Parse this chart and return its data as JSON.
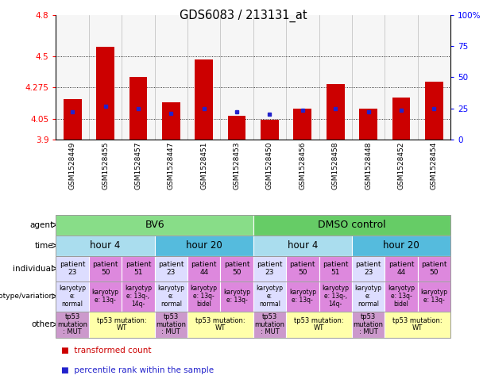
{
  "title": "GDS6083 / 213131_at",
  "samples": [
    "GSM1528449",
    "GSM1528455",
    "GSM1528457",
    "GSM1528447",
    "GSM1528451",
    "GSM1528453",
    "GSM1528450",
    "GSM1528456",
    "GSM1528458",
    "GSM1528448",
    "GSM1528452",
    "GSM1528454"
  ],
  "bar_values": [
    4.19,
    4.57,
    4.35,
    4.17,
    4.48,
    4.07,
    4.04,
    4.12,
    4.3,
    4.12,
    4.2,
    4.32
  ],
  "blue_values": [
    4.1,
    4.14,
    4.12,
    4.09,
    4.12,
    4.1,
    4.08,
    4.11,
    4.12,
    4.1,
    4.11,
    4.12
  ],
  "ymin": 3.9,
  "ymax": 4.8,
  "yticks": [
    3.9,
    4.05,
    4.275,
    4.5,
    4.8
  ],
  "ytick_labels": [
    "3.9",
    "4.05",
    "4.275",
    "4.5",
    "4.8"
  ],
  "right_yticks": [
    0,
    25,
    50,
    75,
    100
  ],
  "right_ytick_labels": [
    "0",
    "25",
    "50",
    "75",
    "100%"
  ],
  "bar_color": "#cc0000",
  "blue_color": "#2222cc",
  "agent_rows": [
    {
      "label": "BV6",
      "span": [
        0,
        6
      ],
      "color": "#88dd88"
    },
    {
      "label": "DMSO control",
      "span": [
        6,
        12
      ],
      "color": "#66cc66"
    }
  ],
  "time_rows": [
    {
      "label": "hour 4",
      "span": [
        0,
        3
      ],
      "color": "#aaddee"
    },
    {
      "label": "hour 20",
      "span": [
        3,
        6
      ],
      "color": "#55bbdd"
    },
    {
      "label": "hour 4",
      "span": [
        6,
        9
      ],
      "color": "#aaddee"
    },
    {
      "label": "hour 20",
      "span": [
        9,
        12
      ],
      "color": "#55bbdd"
    }
  ],
  "individual_items": [
    {
      "label": "patient\n23",
      "span": [
        0,
        1
      ],
      "color": "#ddddff"
    },
    {
      "label": "patient\n50",
      "span": [
        1,
        2
      ],
      "color": "#dd88dd"
    },
    {
      "label": "patient\n51",
      "span": [
        2,
        3
      ],
      "color": "#dd88dd"
    },
    {
      "label": "patient\n23",
      "span": [
        3,
        4
      ],
      "color": "#ddddff"
    },
    {
      "label": "patient\n44",
      "span": [
        4,
        5
      ],
      "color": "#dd88dd"
    },
    {
      "label": "patient\n50",
      "span": [
        5,
        6
      ],
      "color": "#dd88dd"
    },
    {
      "label": "patient\n23",
      "span": [
        6,
        7
      ],
      "color": "#ddddff"
    },
    {
      "label": "patient\n50",
      "span": [
        7,
        8
      ],
      "color": "#dd88dd"
    },
    {
      "label": "patient\n51",
      "span": [
        8,
        9
      ],
      "color": "#dd88dd"
    },
    {
      "label": "patient\n23",
      "span": [
        9,
        10
      ],
      "color": "#ddddff"
    },
    {
      "label": "patient\n44",
      "span": [
        10,
        11
      ],
      "color": "#dd88dd"
    },
    {
      "label": "patient\n50",
      "span": [
        11,
        12
      ],
      "color": "#dd88dd"
    }
  ],
  "genotype_items": [
    {
      "label": "karyotyp\ne:\nnormal",
      "span": [
        0,
        1
      ],
      "color": "#ddddff"
    },
    {
      "label": "karyotyp\ne: 13q-",
      "span": [
        1,
        2
      ],
      "color": "#dd88dd"
    },
    {
      "label": "karyotyp\ne: 13q-,\n14q-",
      "span": [
        2,
        3
      ],
      "color": "#dd88dd"
    },
    {
      "label": "karyotyp\ne:\nnormal",
      "span": [
        3,
        4
      ],
      "color": "#ddddff"
    },
    {
      "label": "karyotyp\ne: 13q-\nbidel",
      "span": [
        4,
        5
      ],
      "color": "#dd88dd"
    },
    {
      "label": "karyotyp\ne: 13q-",
      "span": [
        5,
        6
      ],
      "color": "#dd88dd"
    },
    {
      "label": "karyotyp\ne:\nnormal",
      "span": [
        6,
        7
      ],
      "color": "#ddddff"
    },
    {
      "label": "karyotyp\ne: 13q-",
      "span": [
        7,
        8
      ],
      "color": "#dd88dd"
    },
    {
      "label": "karyotyp\ne: 13q-,\n14q-",
      "span": [
        8,
        9
      ],
      "color": "#dd88dd"
    },
    {
      "label": "karyotyp\ne:\nnormal",
      "span": [
        9,
        10
      ],
      "color": "#ddddff"
    },
    {
      "label": "karyotyp\ne: 13q-\nbidel",
      "span": [
        10,
        11
      ],
      "color": "#dd88dd"
    },
    {
      "label": "karyotyp\ne: 13q-",
      "span": [
        11,
        12
      ],
      "color": "#dd88dd"
    }
  ],
  "other_items": [
    {
      "label": "tp53\nmutation\n: MUT",
      "span": [
        0,
        1
      ],
      "color": "#cc99cc"
    },
    {
      "label": "tp53 mutation:\nWT",
      "span": [
        1,
        3
      ],
      "color": "#ffffaa"
    },
    {
      "label": "tp53\nmutation\n: MUT",
      "span": [
        3,
        4
      ],
      "color": "#cc99cc"
    },
    {
      "label": "tp53 mutation:\nWT",
      "span": [
        4,
        6
      ],
      "color": "#ffffaa"
    },
    {
      "label": "tp53\nmutation\n: MUT",
      "span": [
        6,
        7
      ],
      "color": "#cc99cc"
    },
    {
      "label": "tp53 mutation:\nWT",
      "span": [
        7,
        9
      ],
      "color": "#ffffaa"
    },
    {
      "label": "tp53\nmutation\n: MUT",
      "span": [
        9,
        10
      ],
      "color": "#cc99cc"
    },
    {
      "label": "tp53 mutation:\nWT",
      "span": [
        10,
        12
      ],
      "color": "#ffffaa"
    }
  ],
  "row_label_names": [
    "agent",
    "time",
    "individual",
    "genotype/variation",
    "other"
  ]
}
